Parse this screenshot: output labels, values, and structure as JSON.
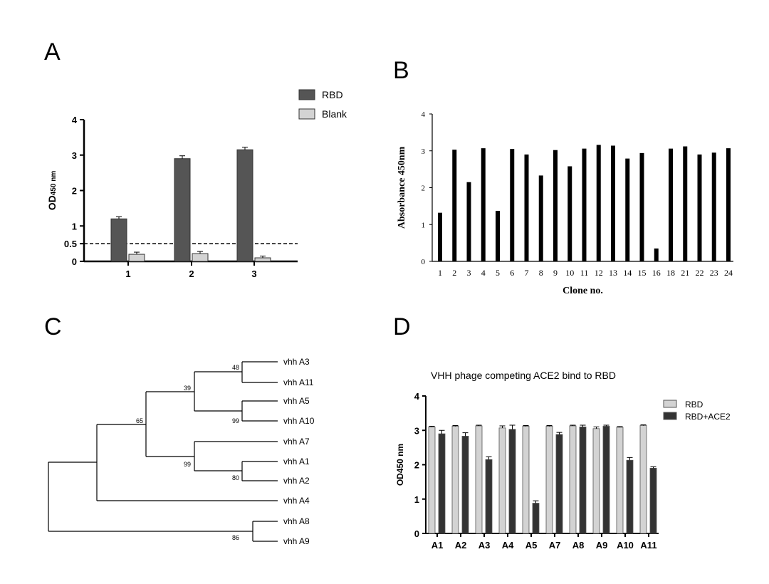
{
  "panel_labels": [
    "A",
    "B",
    "C",
    "D"
  ],
  "chart_data": [
    {
      "type": "bar",
      "panel": "A",
      "categories": [
        "1",
        "2",
        "3"
      ],
      "ylabel": "OD",
      "ylabel_sub": "450 nm",
      "ylim": [
        0,
        4
      ],
      "yticks": [
        "0",
        "0.5",
        "1",
        "2",
        "3",
        "4"
      ],
      "threshold": 0.5,
      "series": [
        {
          "name": "RBD",
          "color": "#555555",
          "values": [
            1.2,
            2.9,
            3.15
          ],
          "errors": [
            0.06,
            0.08,
            0.07
          ]
        },
        {
          "name": "Blank",
          "color": "#d3d3d3",
          "values": [
            0.2,
            0.22,
            0.1
          ],
          "errors": [
            0.06,
            0.06,
            0.05
          ]
        }
      ]
    },
    {
      "type": "bar",
      "panel": "B",
      "categories": [
        "1",
        "2",
        "3",
        "4",
        "5",
        "6",
        "7",
        "8",
        "9",
        "10",
        "11",
        "12",
        "13",
        "14",
        "15",
        "16",
        "18",
        "21",
        "22",
        "23",
        "24"
      ],
      "values": [
        1.32,
        3.03,
        2.15,
        3.07,
        1.37,
        3.05,
        2.9,
        2.33,
        3.02,
        2.58,
        3.06,
        3.16,
        3.14,
        2.79,
        2.94,
        0.35,
        3.06,
        3.12,
        2.9,
        2.95,
        3.07
      ],
      "xlabel": "Clone no.",
      "ylabel": "Absorbance 450nm",
      "ylim": [
        0,
        4
      ],
      "yticks": [
        "0",
        "1",
        "2",
        "3",
        "4"
      ]
    },
    {
      "type": "tree",
      "panel": "C",
      "leaves": [
        "vhh A3",
        "vhh A11",
        "vhh A5",
        "vhh A10",
        "vhh A7",
        "vhh A1",
        "vhh A2",
        "vhh A4",
        "vhh A8",
        "vhh A9"
      ],
      "bootstrap": [
        "48",
        "39",
        "99",
        "65",
        "99",
        "80",
        "86"
      ]
    },
    {
      "type": "bar",
      "panel": "D",
      "title": "VHH phage competing ACE2 bind to RBD",
      "categories": [
        "A1",
        "A2",
        "A3",
        "A4",
        "A5",
        "A7",
        "A8",
        "A9",
        "A10",
        "A11"
      ],
      "ylabel": "OD450 nm",
      "ylim": [
        0,
        4
      ],
      "yticks": [
        "0",
        "1",
        "2",
        "3",
        "4"
      ],
      "series": [
        {
          "name": "RBD",
          "color": "#d3d3d3",
          "values": [
            3.1,
            3.12,
            3.13,
            3.07,
            3.12,
            3.12,
            3.13,
            3.05,
            3.09,
            3.14
          ],
          "errors": [
            0.02,
            0.02,
            0.02,
            0.06,
            0.02,
            0.02,
            0.02,
            0.05,
            0.02,
            0.02
          ]
        },
        {
          "name": "RBD+ACE2",
          "color": "#333333",
          "values": [
            2.9,
            2.83,
            2.15,
            3.03,
            0.88,
            2.88,
            3.1,
            3.12,
            2.13,
            1.9
          ],
          "errors": [
            0.1,
            0.1,
            0.08,
            0.12,
            0.07,
            0.06,
            0.05,
            0.03,
            0.08,
            0.04
          ]
        }
      ]
    }
  ]
}
